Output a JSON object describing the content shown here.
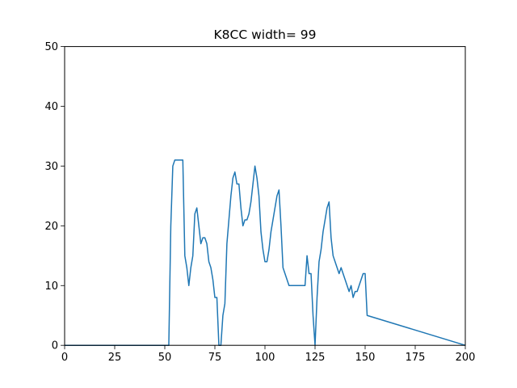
{
  "chart_data": {
    "type": "line",
    "title": "K8CC width= 99",
    "xlabel": "",
    "ylabel": "",
    "xlim": [
      0,
      200
    ],
    "ylim": [
      0,
      50
    ],
    "xticks": [
      0,
      25,
      50,
      75,
      100,
      125,
      150,
      175,
      200
    ],
    "yticks": [
      0,
      10,
      20,
      30,
      40,
      50
    ],
    "grid": false,
    "series_color": "#1f77b4",
    "series": [
      {
        "x": [
          0,
          52,
          53,
          54,
          55,
          56,
          57,
          58,
          59,
          60,
          61,
          62,
          63,
          64,
          65,
          66,
          67,
          68,
          69,
          70,
          71,
          72,
          73,
          74,
          75,
          76,
          77,
          78,
          79,
          80,
          81,
          82,
          83,
          84,
          85,
          86,
          87,
          88,
          89,
          90,
          91,
          92,
          93,
          94,
          95,
          96,
          97,
          98,
          99,
          100,
          101,
          102,
          103,
          104,
          105,
          106,
          107,
          108,
          109,
          110,
          111,
          112,
          113,
          114,
          115,
          116,
          117,
          118,
          119,
          120,
          121,
          122,
          123,
          124,
          125,
          126,
          127,
          128,
          129,
          130,
          131,
          132,
          133,
          134,
          135,
          136,
          137,
          138,
          139,
          140,
          141,
          142,
          143,
          144,
          145,
          146,
          147,
          148,
          149,
          150,
          151,
          200
        ],
        "values": [
          0,
          0,
          20,
          30,
          31,
          31,
          31,
          31,
          31,
          15,
          13,
          10,
          13,
          15,
          22,
          23,
          20,
          17,
          18,
          18,
          17,
          14,
          13,
          11,
          8,
          8,
          0,
          0,
          5,
          7,
          17,
          21,
          25,
          28,
          29,
          27,
          27,
          23,
          20,
          21,
          21,
          22,
          24,
          27,
          30,
          28,
          25,
          19,
          16,
          14,
          14,
          16,
          19,
          21,
          23,
          25,
          26,
          20,
          13,
          12,
          11,
          10,
          10,
          10,
          10,
          10,
          10,
          10,
          10,
          10,
          15,
          12,
          12,
          5,
          0,
          8,
          14,
          16,
          19,
          21,
          23,
          24,
          18,
          15,
          14,
          13,
          12,
          13,
          12,
          11,
          10,
          9,
          10,
          8,
          9,
          9,
          10,
          11,
          12,
          12,
          5,
          0
        ]
      }
    ]
  }
}
